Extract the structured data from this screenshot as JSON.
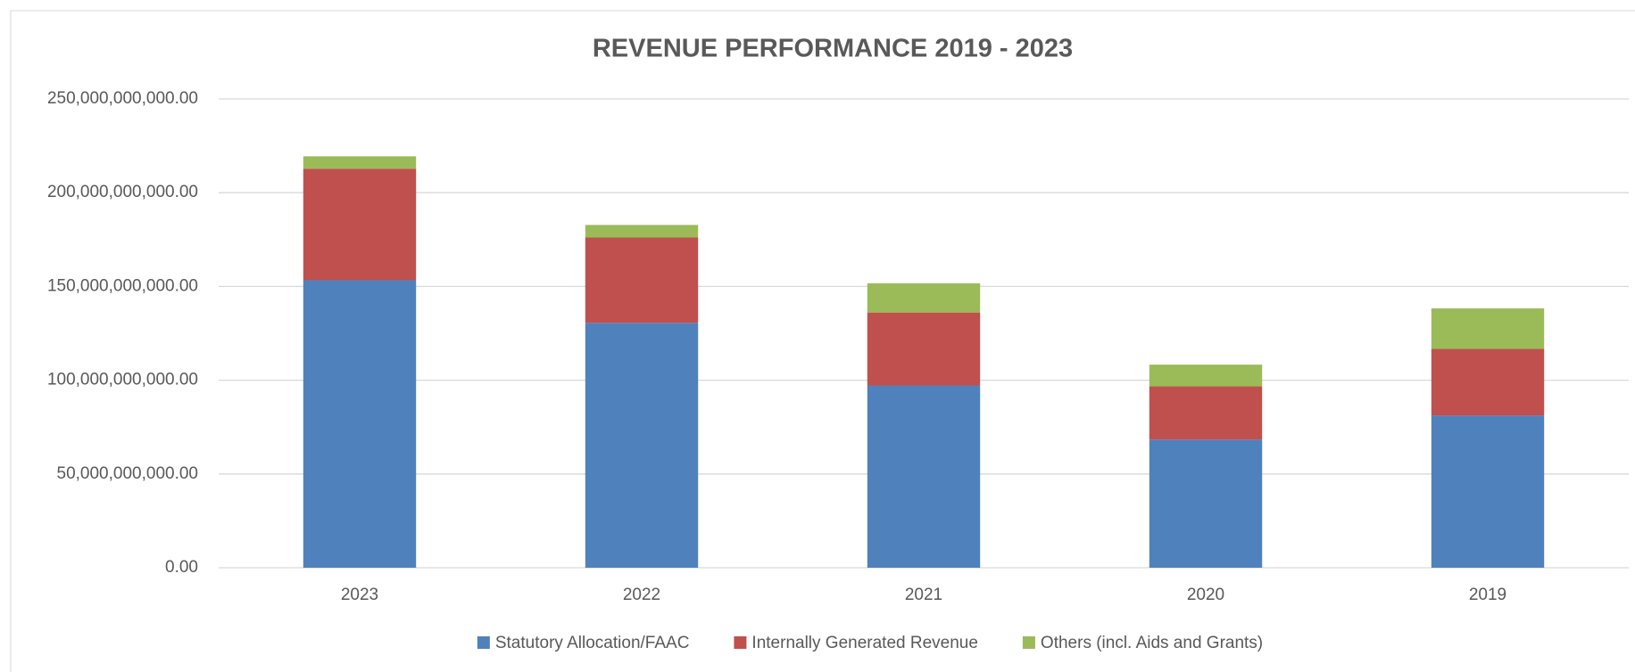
{
  "chart_data": {
    "type": "stacked_bar",
    "title": "REVENUE PERFORMANCE 2019 - 2023",
    "categories": [
      "2023",
      "2022",
      "2021",
      "2020",
      "2019"
    ],
    "series": [
      {
        "name": "Statutory Allocation/FAAC",
        "color": "#4f81bd",
        "values": [
          153300000000,
          130600000000,
          97200000000,
          68300000000,
          81100000000
        ]
      },
      {
        "name": "Internally Generated Revenue",
        "color": "#c0504d",
        "values": [
          59500000000,
          45500000000,
          38900000000,
          28400000000,
          35600000000
        ]
      },
      {
        "name": "Others (incl. Aids and Grants)",
        "color": "#9bbb59",
        "values": [
          6600000000,
          6700000000,
          15600000000,
          11600000000,
          21600000000
        ]
      }
    ],
    "ylim": [
      0,
      250000000000
    ],
    "yticks": [
      {
        "value": 0,
        "label": "0.00"
      },
      {
        "value": 50000000000,
        "label": "50,000,000,000.00"
      },
      {
        "value": 100000000000,
        "label": "100,000,000,000.00"
      },
      {
        "value": 150000000000,
        "label": "150,000,000,000.00"
      },
      {
        "value": 200000000000,
        "label": "200,000,000,000.00"
      },
      {
        "value": 250000000000,
        "label": "250,000,000,000.00"
      }
    ],
    "grid": true,
    "legend": "bottom"
  }
}
